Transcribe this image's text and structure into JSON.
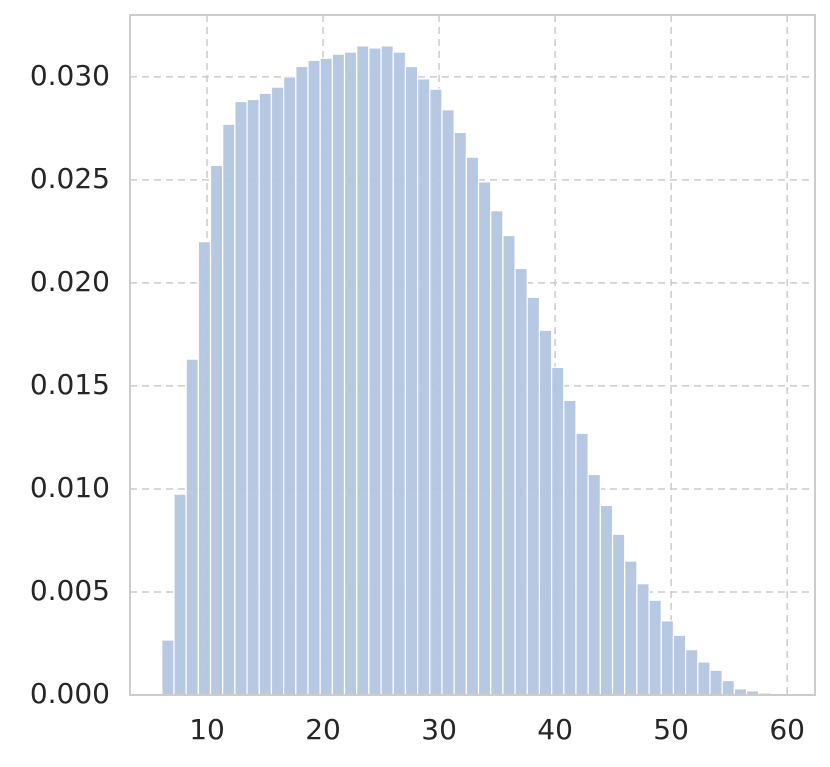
{
  "chart_data": {
    "type": "histogram",
    "bins": [
      6.1,
      7.15,
      8.2,
      9.25,
      10.3,
      11.35,
      12.4,
      13.45,
      14.5,
      15.55,
      16.6,
      17.65,
      18.7,
      19.75,
      20.8,
      21.85,
      22.9,
      23.95,
      25.0,
      26.05,
      27.1,
      28.15,
      29.2,
      30.25,
      31.3,
      32.35,
      33.4,
      34.45,
      35.5,
      36.55,
      37.6,
      38.65,
      39.7,
      40.75,
      41.8,
      42.85,
      43.9,
      44.95,
      46.0,
      47.05,
      48.1,
      49.15,
      50.2,
      51.25,
      52.3,
      53.35,
      54.4,
      55.45,
      56.5,
      57.55,
      58.6
    ],
    "values": [
      0.00267,
      0.00975,
      0.0163,
      0.022,
      0.0257,
      0.0277,
      0.0288,
      0.0289,
      0.0292,
      0.0295,
      0.03,
      0.0305,
      0.0308,
      0.0309,
      0.0311,
      0.0312,
      0.0315,
      0.0314,
      0.0315,
      0.0312,
      0.0305,
      0.0299,
      0.0294,
      0.0284,
      0.0273,
      0.0261,
      0.0249,
      0.0235,
      0.0223,
      0.0207,
      0.0193,
      0.0177,
      0.0159,
      0.0143,
      0.0127,
      0.0107,
      0.0092,
      0.0078,
      0.0065,
      0.0054,
      0.0046,
      0.0036,
      0.0029,
      0.0022,
      0.0016,
      0.0012,
      0.0007,
      0.0003,
      0.0002,
      0.0001
    ],
    "color": "#b3c5e0",
    "xlim": [
      3.36,
      62.4
    ],
    "xticks": [
      10,
      20,
      30,
      40,
      50,
      60
    ],
    "ylim": [
      0,
      0.033
    ],
    "yticks": [
      {
        "value": 0,
        "label": "0.000"
      },
      {
        "value": 0.005,
        "label": "0.005"
      },
      {
        "value": 0.01,
        "label": "0.010"
      },
      {
        "value": 0.015,
        "label": "0.015"
      },
      {
        "value": 0.02,
        "label": "0.020"
      },
      {
        "value": 0.025,
        "label": "0.025"
      },
      {
        "value": 0.03,
        "label": "0.030"
      }
    ],
    "grid": true
  }
}
